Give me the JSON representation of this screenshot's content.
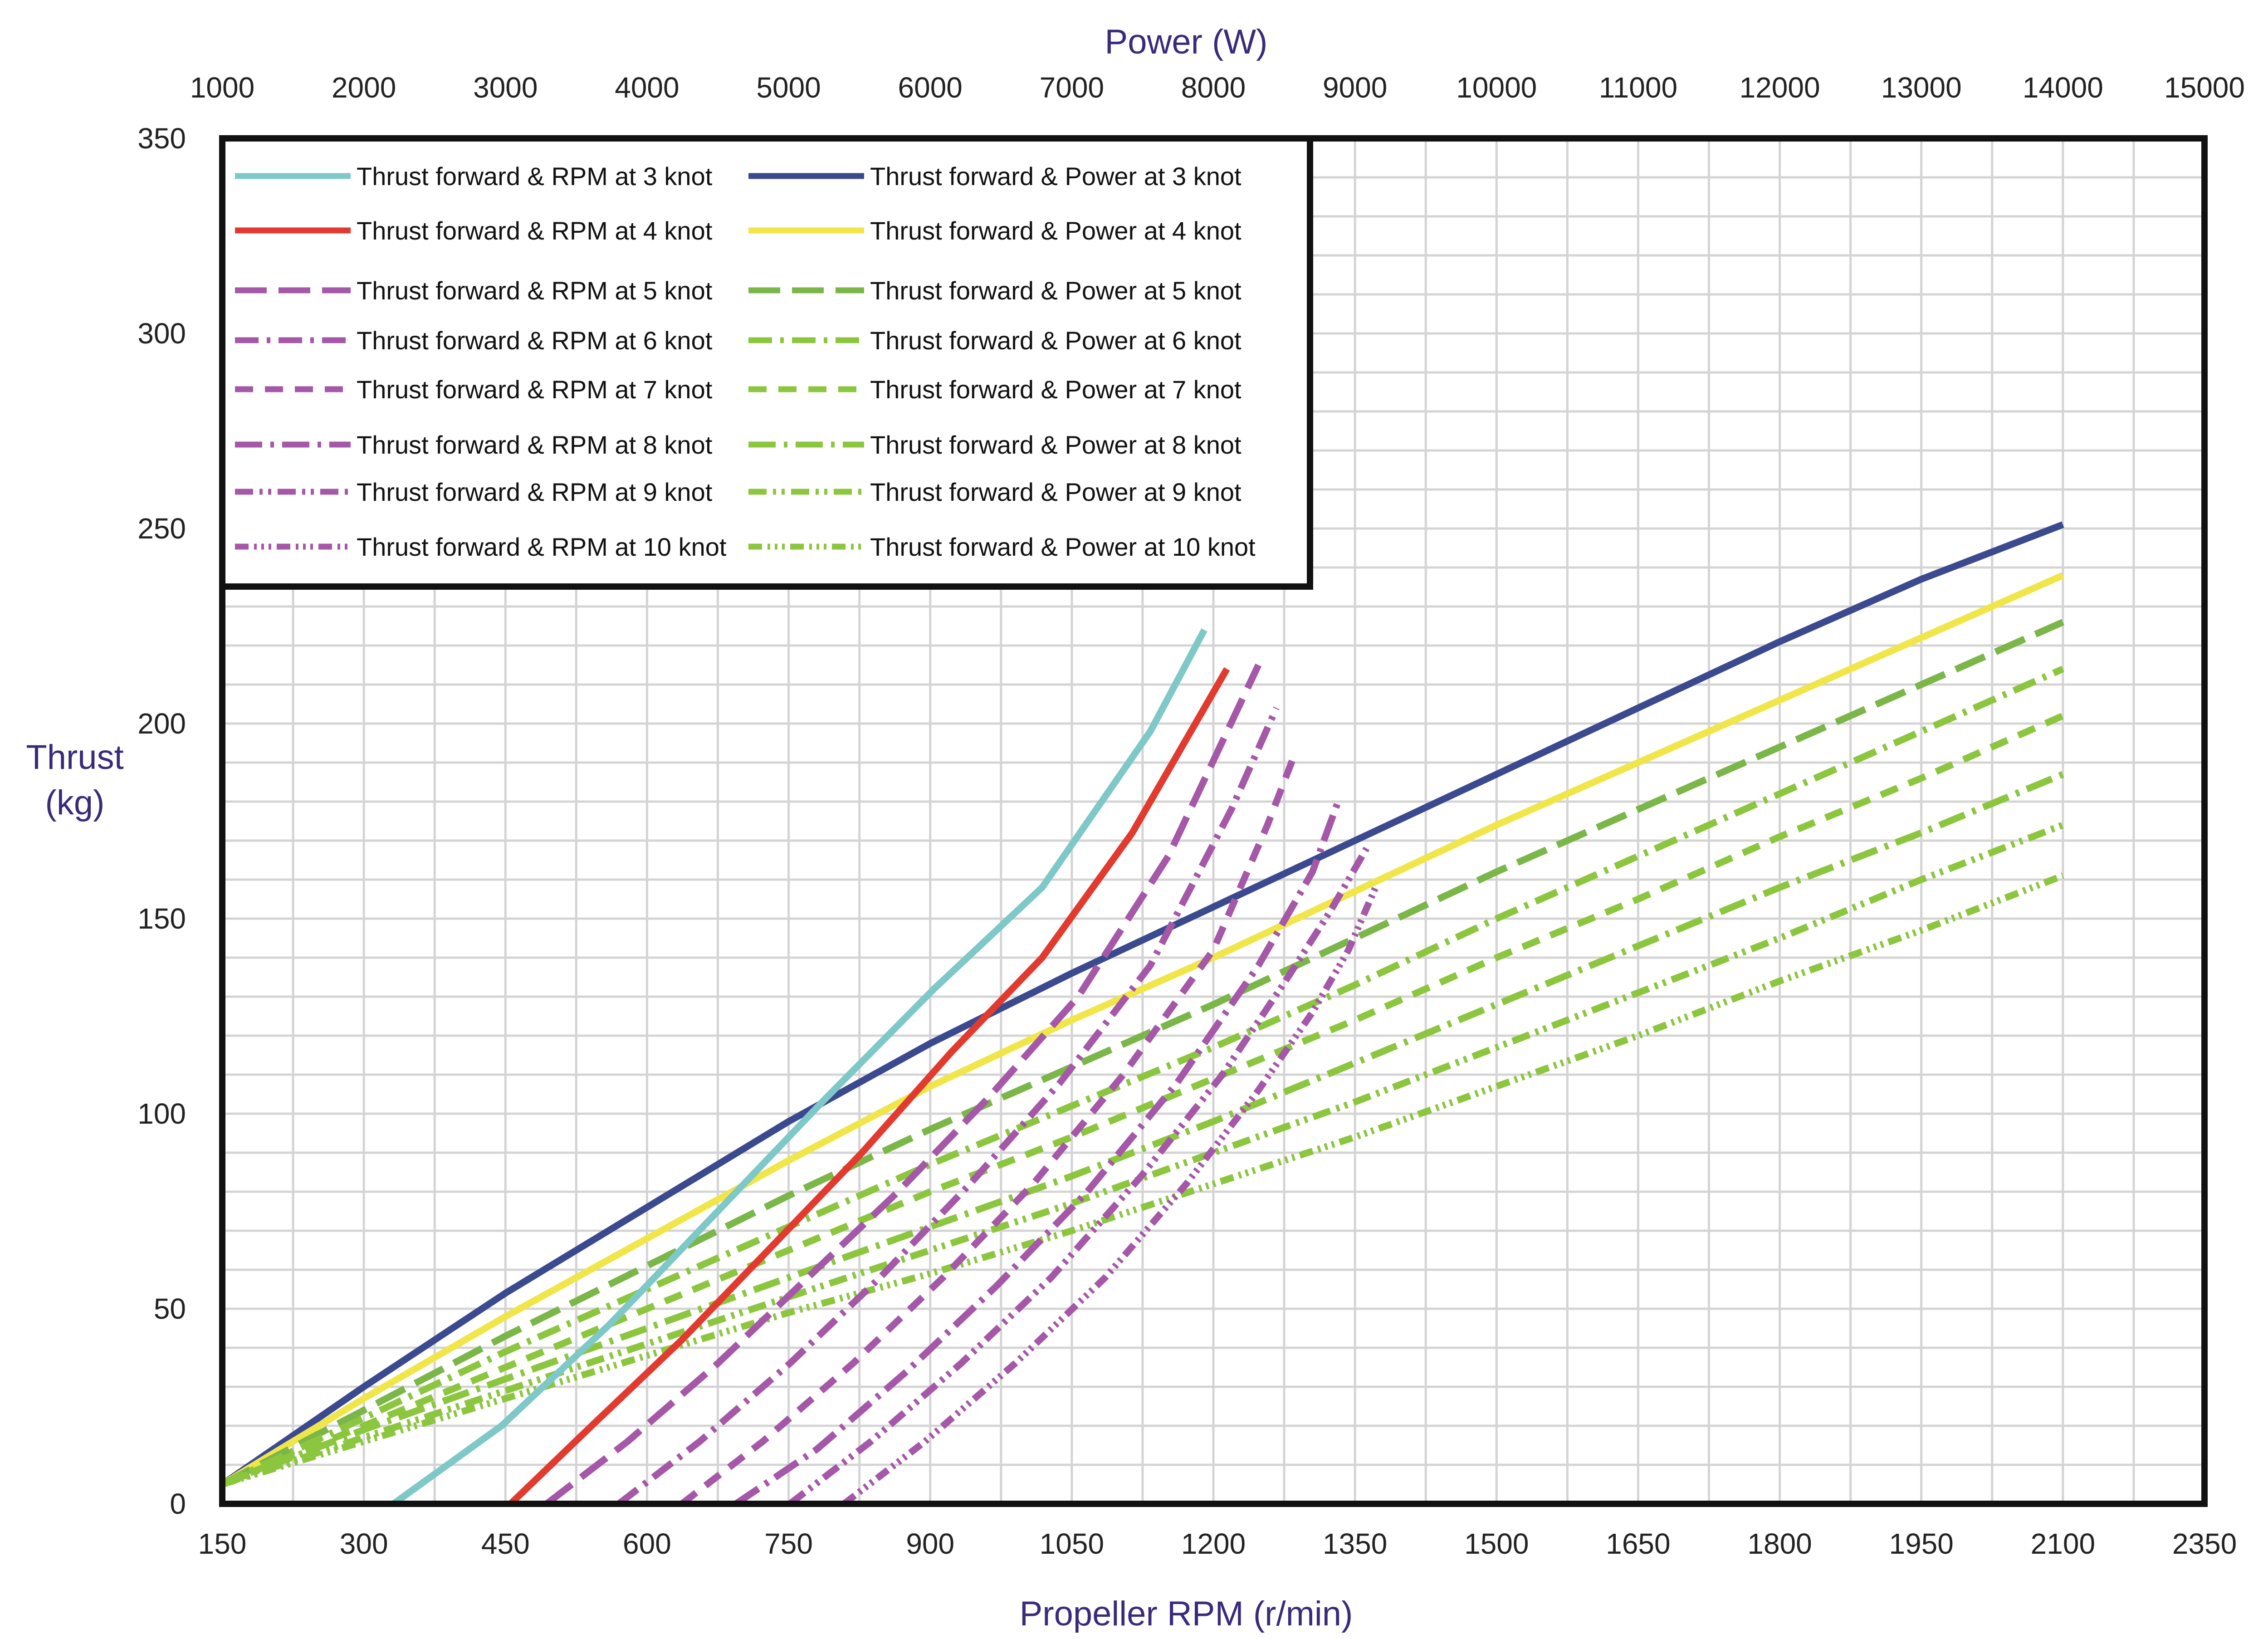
{
  "chart_data": {
    "type": "line",
    "title": "",
    "xlabel": "Propeller RPM (r/min)",
    "ylabel": "Thrust (kg)",
    "x2label": "Power (W)",
    "xlim": [
      150,
      2350
    ],
    "ylim": [
      0,
      350
    ],
    "x2lim": [
      1000,
      15000
    ],
    "x_ticks": [
      "150",
      "300",
      "450",
      "600",
      "750",
      "900",
      "1050",
      "1200",
      "1350",
      "1500",
      "1650",
      "1800",
      "1950",
      "2100",
      "2350"
    ],
    "y_ticks": [
      "0",
      "50",
      "100",
      "150",
      "200",
      "250",
      "300",
      "350"
    ],
    "x2_ticks": [
      "1000",
      "2000",
      "3000",
      "4000",
      "5000",
      "6000",
      "7000",
      "8000",
      "9000",
      "10000",
      "11000",
      "12000",
      "13000",
      "14000",
      "15000"
    ],
    "grid": true,
    "legend_position": "top-left",
    "series": [
      {
        "name": "Thrust forward &  RPM at 3 knot",
        "axis": "rpm",
        "color": "#7ec8c8",
        "dash": "solid",
        "x": [
          340,
          460,
          580,
          700,
          820,
          940,
          1060,
          1180,
          1240
        ],
        "y": [
          0,
          20,
          46,
          75,
          104,
          132,
          158,
          198,
          224
        ]
      },
      {
        "name": "Thrust forward &  RPM at 4 knot",
        "axis": "rpm",
        "color": "#e23a2e",
        "dash": "solid",
        "x": [
          470,
          560,
          660,
          760,
          860,
          960,
          1060,
          1160,
          1265
        ],
        "y": [
          0,
          20,
          42,
          66,
          90,
          116,
          140,
          172,
          214
        ]
      },
      {
        "name": "Thrust forward &  RPM at 5 knot",
        "axis": "rpm",
        "color": "#a557a8",
        "dash": "long",
        "x": [
          510,
          600,
          700,
          800,
          900,
          1000,
          1100,
          1200,
          1300
        ],
        "y": [
          0,
          16,
          36,
          58,
          80,
          104,
          130,
          166,
          215
        ]
      },
      {
        "name": "Thrust forward &  RPM at 6 knot",
        "axis": "rpm",
        "color": "#a557a8",
        "dash": "dashdot",
        "x": [
          590,
          680,
          780,
          880,
          980,
          1080,
          1180,
          1270,
          1320
        ],
        "y": [
          0,
          16,
          36,
          58,
          82,
          108,
          138,
          178,
          204
        ]
      },
      {
        "name": "Thrust forward &  RPM at 7 knot",
        "axis": "rpm",
        "color": "#a557a8",
        "dash": "medium",
        "x": [
          660,
          750,
          850,
          950,
          1050,
          1150,
          1250,
          1310,
          1340
        ],
        "y": [
          0,
          16,
          36,
          58,
          82,
          110,
          142,
          174,
          192
        ]
      },
      {
        "name": "Thrust forward &  RPM at 8 knot",
        "axis": "rpm",
        "color": "#a557a8",
        "dash": "longdot",
        "x": [
          720,
          810,
          910,
          1010,
          1110,
          1210,
          1300,
          1360,
          1390
        ],
        "y": [
          0,
          14,
          34,
          56,
          80,
          108,
          138,
          162,
          181
        ]
      },
      {
        "name": "Thrust forward &  RPM at 9 knot",
        "axis": "rpm",
        "color": "#a557a8",
        "dash": "dashdotdot",
        "x": [
          780,
          870,
          970,
          1070,
          1170,
          1260,
          1330,
          1380,
          1420
        ],
        "y": [
          0,
          16,
          36,
          58,
          84,
          110,
          134,
          152,
          168
        ]
      },
      {
        "name": "Thrust forward &  RPM at 10 knot",
        "axis": "rpm",
        "color": "#a557a8",
        "dash": "dashdotdotdot",
        "x": [
          840,
          930,
          1030,
          1130,
          1220,
          1300,
          1360,
          1400,
          1430
        ],
        "y": [
          0,
          16,
          36,
          58,
          82,
          106,
          126,
          142,
          158
        ]
      },
      {
        "name": "Thrust forward & Power at 3 knot",
        "axis": "power",
        "color": "#3b4a8f",
        "dash": "solid",
        "x": [
          1000,
          2000,
          3000,
          4000,
          5000,
          6000,
          7000,
          8000,
          9000,
          10000,
          11000,
          12000,
          13000,
          14000
        ],
        "y": [
          5,
          30,
          54,
          76,
          98,
          118,
          136,
          153,
          170,
          187,
          204,
          221,
          237,
          251
        ]
      },
      {
        "name": "Thrust forward & Power at 4 knot",
        "axis": "power",
        "color": "#f0e64a",
        "dash": "solid",
        "x": [
          1000,
          2000,
          3000,
          4000,
          5000,
          6000,
          7000,
          8000,
          9000,
          10000,
          11000,
          12000,
          13000,
          14000
        ],
        "y": [
          5,
          27,
          48,
          68,
          88,
          107,
          124,
          140,
          157,
          174,
          190,
          206,
          222,
          238
        ]
      },
      {
        "name": "Thrust forward & Power at 5 knot",
        "axis": "power",
        "color": "#7ab648",
        "dash": "long",
        "x": [
          1000,
          2000,
          3000,
          4000,
          5000,
          6000,
          7000,
          8000,
          9000,
          10000,
          11000,
          12000,
          13000,
          14000
        ],
        "y": [
          5,
          24,
          43,
          61,
          79,
          96,
          112,
          128,
          145,
          162,
          178,
          194,
          210,
          226
        ]
      },
      {
        "name": "Thrust forward & Power at 6 knot",
        "axis": "power",
        "color": "#8cc63f",
        "dash": "dashdot",
        "x": [
          1000,
          2000,
          3000,
          4000,
          5000,
          6000,
          7000,
          8000,
          9000,
          10000,
          11000,
          12000,
          13000,
          14000
        ],
        "y": [
          5,
          22,
          39,
          55,
          71,
          87,
          102,
          117,
          133,
          150,
          166,
          182,
          198,
          214
        ]
      },
      {
        "name": "Thrust forward & Power at 7 knot",
        "axis": "power",
        "color": "#8cc63f",
        "dash": "medium",
        "x": [
          1000,
          2000,
          3000,
          4000,
          5000,
          6000,
          7000,
          8000,
          9000,
          10000,
          11000,
          12000,
          13000,
          14000
        ],
        "y": [
          5,
          20,
          35,
          50,
          65,
          80,
          94,
          109,
          124,
          140,
          155,
          171,
          186,
          202
        ]
      },
      {
        "name": "Thrust forward & Power at 8 knot",
        "axis": "power",
        "color": "#8cc63f",
        "dash": "longdot",
        "x": [
          1000,
          2000,
          3000,
          4000,
          5000,
          6000,
          7000,
          8000,
          9000,
          10000,
          11000,
          12000,
          13000,
          14000
        ],
        "y": [
          5,
          19,
          32,
          45,
          58,
          71,
          84,
          98,
          113,
          128,
          143,
          158,
          172,
          187
        ]
      },
      {
        "name": "Thrust forward & Power at 9 knot",
        "axis": "power",
        "color": "#8cc63f",
        "dash": "dashdotdot",
        "x": [
          1000,
          2000,
          3000,
          4000,
          5000,
          6000,
          7000,
          8000,
          9000,
          10000,
          11000,
          12000,
          13000,
          14000
        ],
        "y": [
          5,
          17,
          29,
          41,
          53,
          65,
          77,
          90,
          103,
          117,
          131,
          145,
          160,
          174
        ]
      },
      {
        "name": "Thrust forward & Power at 10 knot",
        "axis": "power",
        "color": "#8cc63f",
        "dash": "dashdotdotdot",
        "x": [
          1000,
          2000,
          3000,
          4000,
          5000,
          6000,
          7000,
          8000,
          9000,
          10000,
          11000,
          12000,
          13000,
          14000
        ],
        "y": [
          5,
          16,
          27,
          38,
          49,
          59,
          70,
          82,
          94,
          107,
          120,
          134,
          147,
          161
        ]
      }
    ]
  }
}
